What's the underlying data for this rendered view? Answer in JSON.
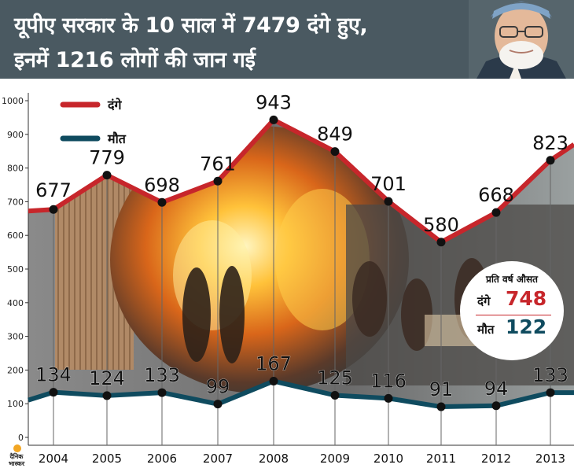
{
  "header": {
    "title_line1": "यूपीए सरकार के 10 साल में 7479 दंगे हुए,",
    "title_line2": "इनमें 1216 लोगों की जान गई"
  },
  "colors": {
    "header_bg": "#4a5961",
    "riot_line": "#c7262b",
    "death_line": "#0f4b5f"
  },
  "chart_data": {
    "type": "line",
    "title": "",
    "xlabel": "",
    "ylabel": "",
    "x": [
      "2004",
      "2005",
      "2006",
      "2007",
      "2008",
      "2009",
      "2010",
      "2011",
      "2012",
      "2013"
    ],
    "ylim": [
      0,
      1000
    ],
    "yticks": [
      "0",
      "100",
      "200",
      "300",
      "400",
      "500",
      "600",
      "700",
      "800",
      "900",
      "1000"
    ],
    "series": [
      {
        "name": "दंगे",
        "values": [
          677,
          779,
          698,
          761,
          943,
          849,
          701,
          580,
          668,
          823
        ],
        "labels": [
          "677",
          "779",
          "698",
          "761",
          "943",
          "849",
          "701",
          "580",
          "668",
          "823"
        ]
      },
      {
        "name": "मौत",
        "values": [
          134,
          124,
          133,
          99,
          167,
          125,
          116,
          91,
          94,
          133
        ],
        "labels": [
          "134",
          "124",
          "133",
          "99",
          "167",
          "125",
          "116",
          "91",
          "94",
          "133"
        ]
      }
    ],
    "legend": "top-left",
    "grid": false
  },
  "average_box": {
    "title": "प्रति वर्ष औसत",
    "riot_label": "दंगे",
    "riot_value": "748",
    "death_label": "मौत",
    "death_value": "122"
  },
  "logo": {
    "line1": "दैनिक",
    "line2": "भास्कर"
  }
}
